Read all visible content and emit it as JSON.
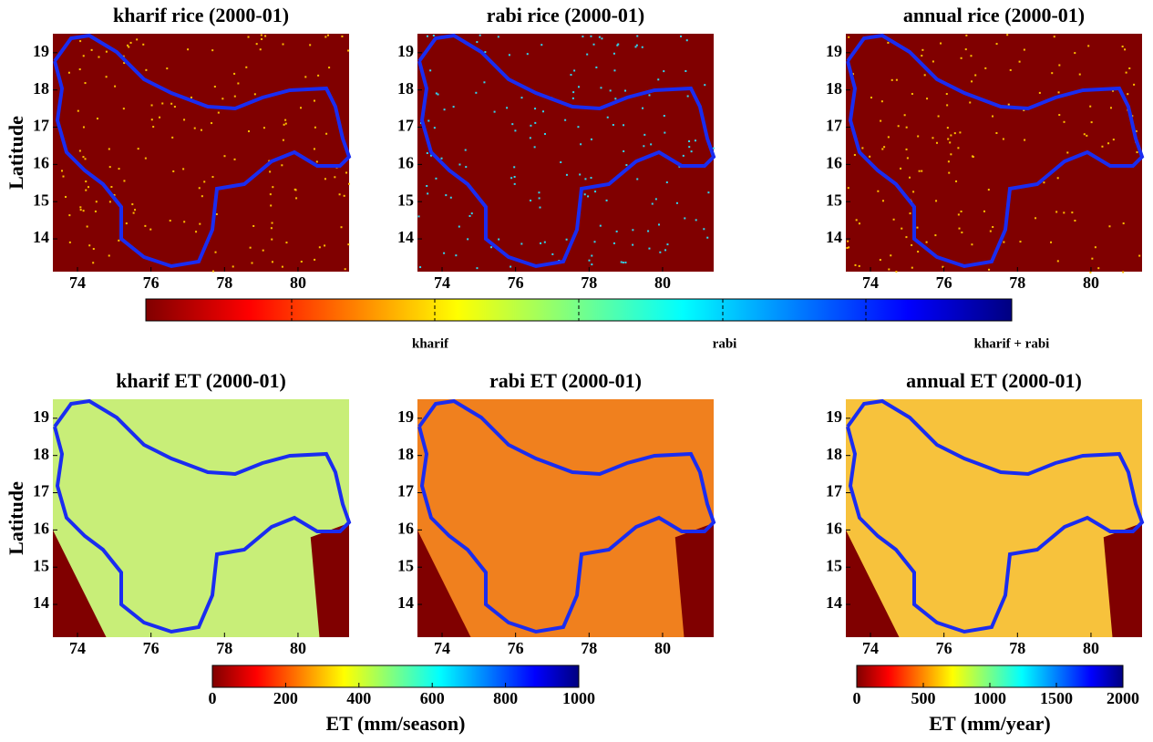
{
  "axes": {
    "xlim": [
      73.33,
      81.39
    ],
    "ylim": [
      13.12,
      19.51
    ],
    "xticks": [
      74,
      76,
      78,
      80
    ],
    "yticks": [
      14,
      15,
      16,
      17,
      18,
      19
    ],
    "ylabel": "Latitude"
  },
  "panels": [
    {
      "title": "kharif rice (2000-01)",
      "style": "rice-kharif"
    },
    {
      "title": "rabi rice (2000-01)",
      "style": "rice-rabi"
    },
    {
      "title": "annual rice (2000-01)",
      "style": "rice-annual"
    },
    {
      "title": "kharif ET (2000-01)",
      "style": "et-kharif"
    },
    {
      "title": "rabi ET (2000-01)",
      "style": "et-rabi"
    },
    {
      "title": "annual ET (2000-01)",
      "style": "et-annual"
    }
  ],
  "class_colorbar": {
    "labels": [
      "kharif",
      "rabi",
      "kharif + rabi"
    ]
  },
  "colorbars": [
    {
      "label": "ET (mm/season)",
      "lim": [
        0,
        1000
      ],
      "ticks": [
        0,
        200,
        400,
        600,
        800,
        1000
      ]
    },
    {
      "label": "ET (mm/year)",
      "lim": [
        0,
        2000
      ],
      "ticks": [
        0,
        500,
        1000,
        1500,
        2000
      ]
    }
  ]
}
